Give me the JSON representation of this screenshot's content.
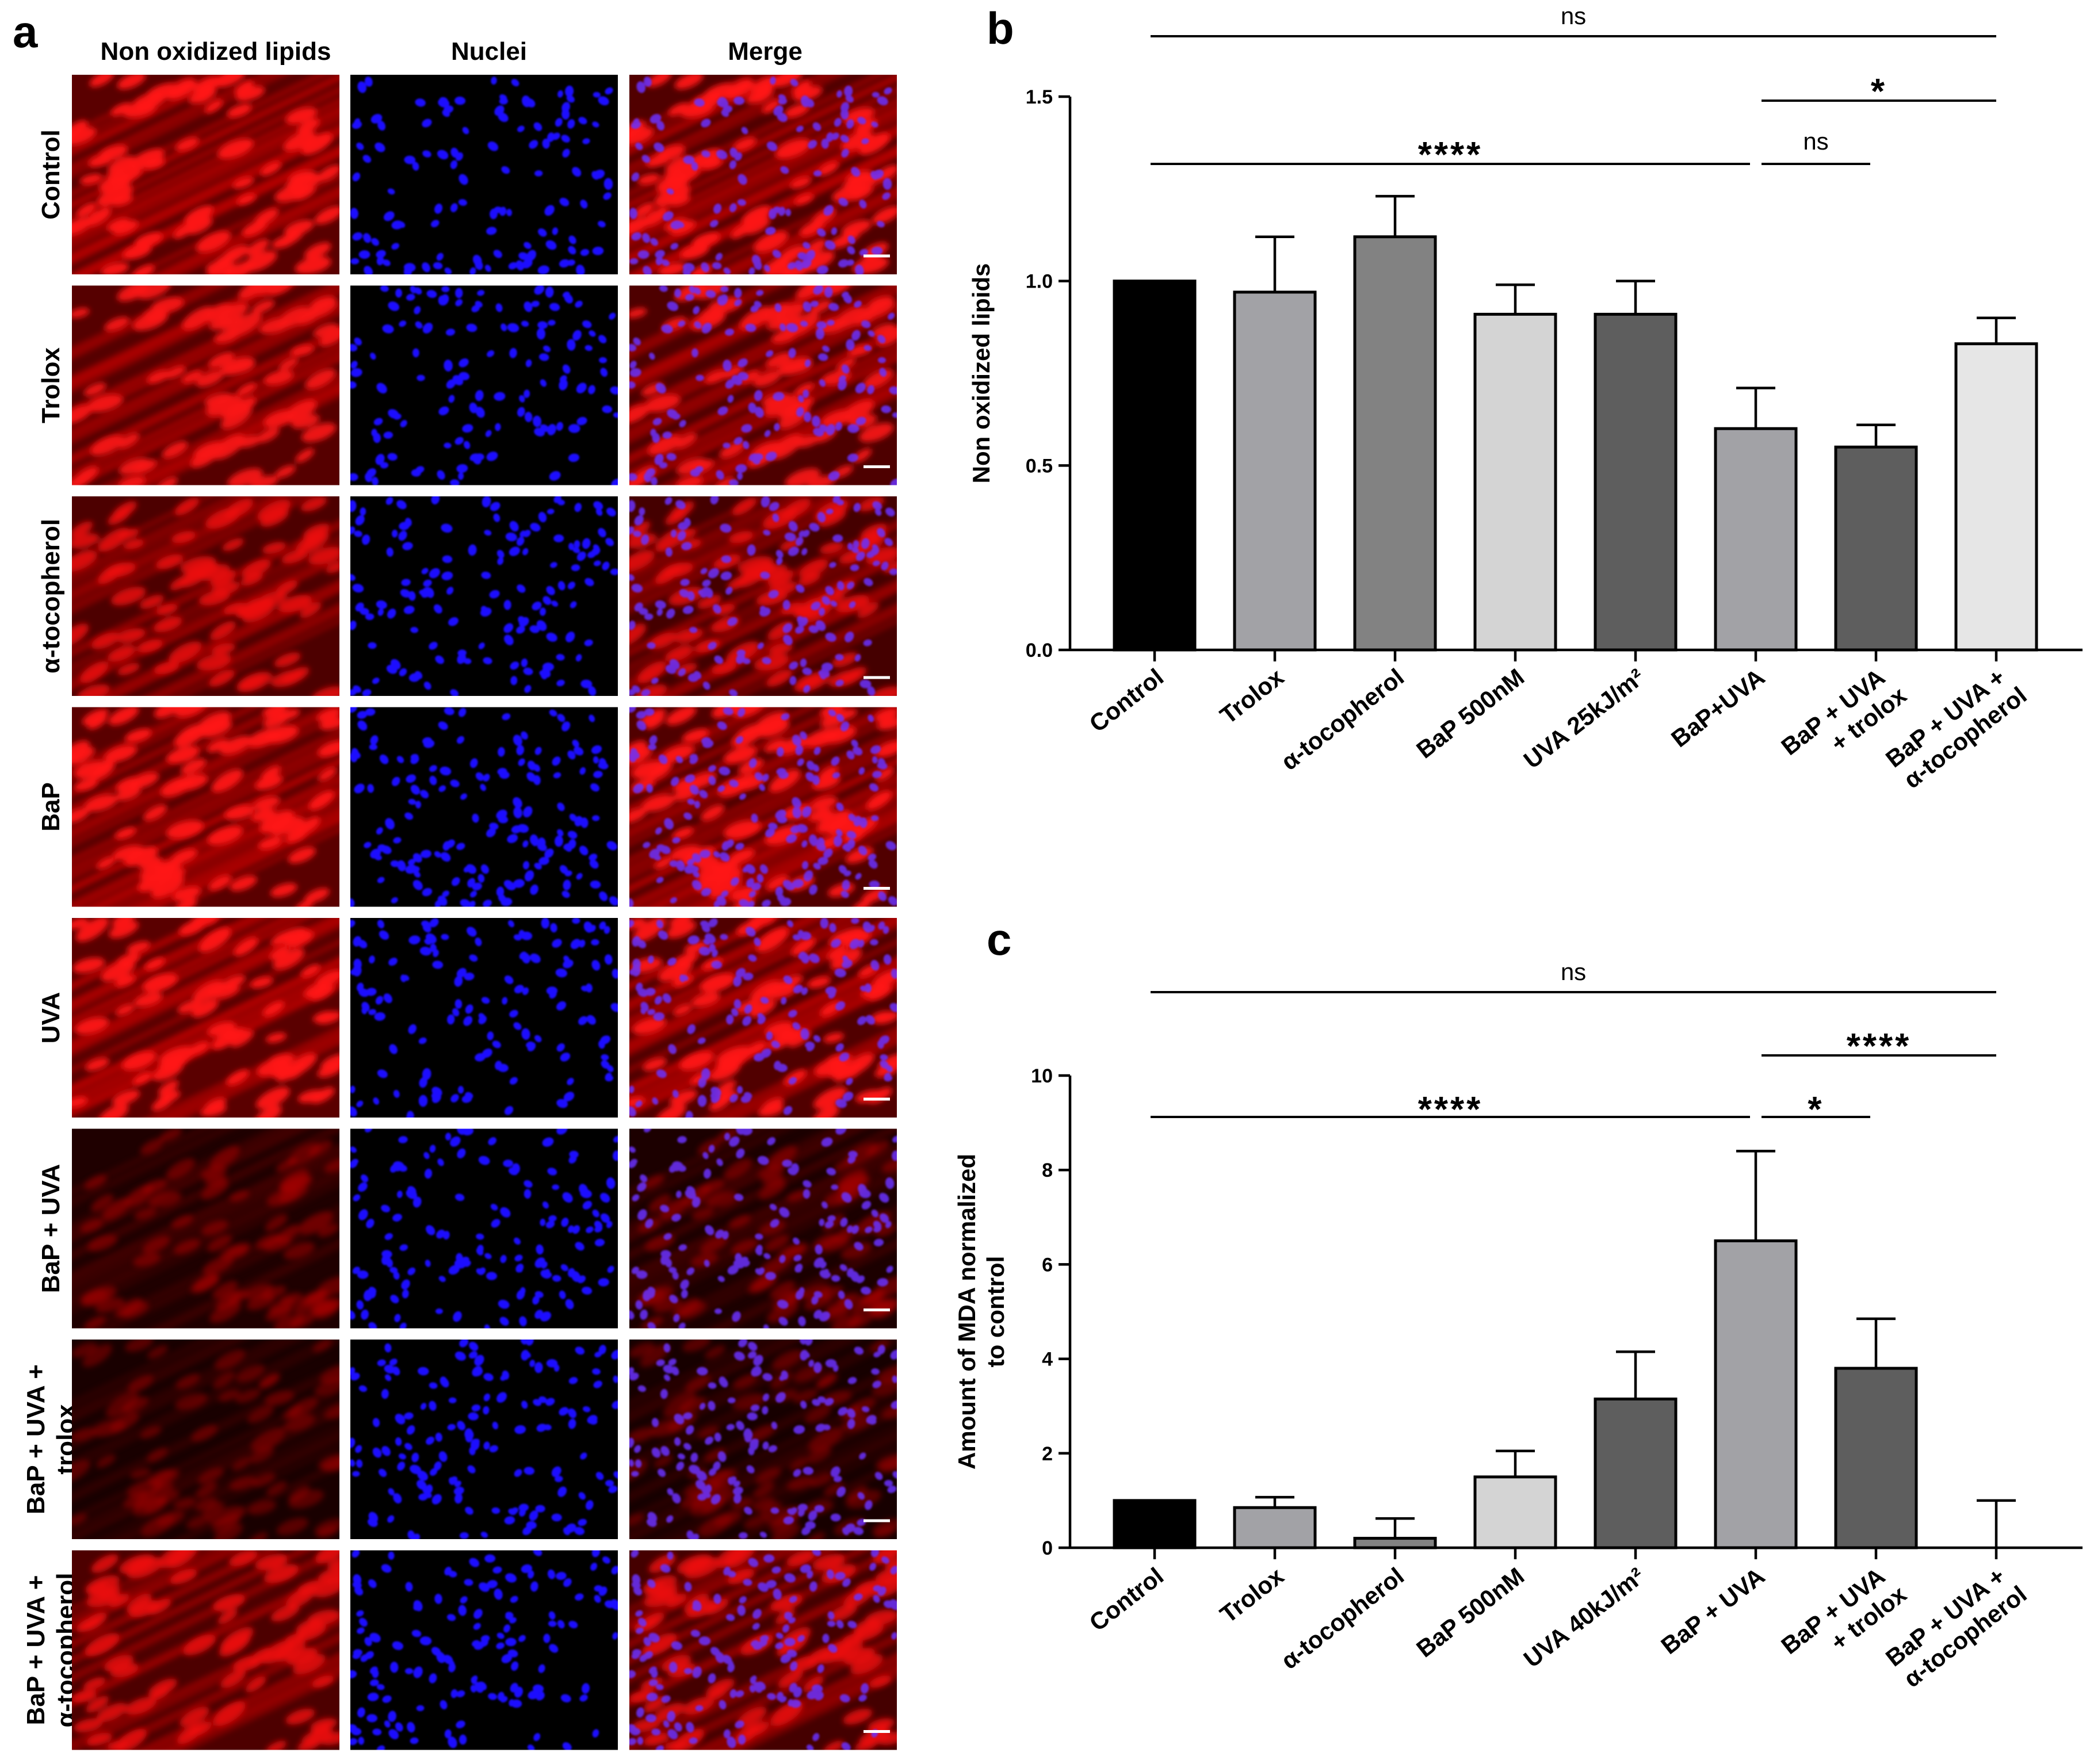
{
  "panel_a": {
    "letter": "a",
    "columns": [
      "Non oxidized lipids",
      "Nuclei",
      "Merge"
    ],
    "rows": [
      [
        "Control"
      ],
      [
        "Trolox"
      ],
      [
        "α-tocopherol"
      ],
      [
        "BaP"
      ],
      [
        "UVA"
      ],
      [
        "BaP + UVA"
      ],
      [
        "BaP + UVA +",
        "trolox"
      ],
      [
        "BaP + UVA +",
        "α-tocopherol"
      ]
    ],
    "intensity": [
      1.0,
      0.95,
      0.85,
      1.0,
      1.0,
      0.35,
      0.28,
      0.85
    ],
    "nuclei_density": [
      0.55,
      0.6,
      0.75,
      1.0,
      0.65,
      0.8,
      0.85,
      0.8
    ],
    "colors": {
      "lipid": "#e00000",
      "nuclei": "#1a10ff",
      "background": "#000000"
    }
  },
  "chart_data": [
    {
      "panel": "b",
      "type": "bar",
      "ylabel": [
        "Non oxidized lipids"
      ],
      "ylim": [
        0,
        1.5
      ],
      "yticks": [
        0.0,
        0.5,
        1.0,
        1.5
      ],
      "ytick_labels": [
        "0.0",
        "0.5",
        "1.0",
        "1.5"
      ],
      "categories": [
        [
          "Control"
        ],
        [
          "Trolox"
        ],
        [
          "α-tocopherol"
        ],
        [
          "BaP 500nM"
        ],
        [
          "UVA 25kJ/m²"
        ],
        [
          "BaP+UVA"
        ],
        [
          "BaP + UVA",
          "+ trolox"
        ],
        [
          "BaP + UVA +",
          "α-tocopherol"
        ]
      ],
      "values": [
        1.0,
        0.97,
        1.12,
        0.91,
        0.91,
        0.6,
        0.55,
        0.83
      ],
      "errors": [
        0.0,
        0.15,
        0.11,
        0.08,
        0.09,
        0.11,
        0.06,
        0.07
      ],
      "bar_colors": [
        "#000000",
        "#a2a2a6",
        "#828282",
        "#d4d4d4",
        "#5e5e5e",
        "#a2a2a6",
        "#5e5e5e",
        "#e6e6e6"
      ],
      "significance": [
        {
          "from": 0,
          "to": 7,
          "label": "ns"
        },
        {
          "from": 5,
          "to": 7,
          "label": "*"
        },
        {
          "from": 0,
          "to": 5,
          "label": "****"
        },
        {
          "from": 5,
          "to": 6,
          "label": "ns"
        }
      ]
    },
    {
      "panel": "c",
      "type": "bar",
      "ylabel": [
        "Amount of MDA normalized",
        "to control"
      ],
      "ylim": [
        0,
        10
      ],
      "yticks": [
        0,
        2,
        4,
        6,
        8,
        10
      ],
      "ytick_labels": [
        "0",
        "2",
        "4",
        "6",
        "8",
        "10"
      ],
      "categories": [
        [
          "Control"
        ],
        [
          "Trolox"
        ],
        [
          "α-tocopherol"
        ],
        [
          "BaP 500nM"
        ],
        [
          "UVA 40kJ/m²"
        ],
        [
          "BaP + UVA"
        ],
        [
          "BaP + UVA",
          "+ trolox"
        ],
        [
          "BaP + UVA +",
          "α-tocopherol"
        ]
      ],
      "values": [
        1.0,
        0.85,
        0.2,
        1.5,
        3.15,
        6.5,
        3.8,
        0.0
      ],
      "errors": [
        0.0,
        0.22,
        0.42,
        0.55,
        1.0,
        1.9,
        1.05,
        1.0
      ],
      "bar_colors": [
        "#000000",
        "#a2a2a6",
        "#828282",
        "#d4d4d4",
        "#5e5e5e",
        "#a2a2a6",
        "#5e5e5e",
        "#e6e6e6"
      ],
      "significance": [
        {
          "from": 0,
          "to": 7,
          "label": "ns"
        },
        {
          "from": 5,
          "to": 7,
          "label": "****"
        },
        {
          "from": 0,
          "to": 5,
          "label": "****"
        },
        {
          "from": 5,
          "to": 6,
          "label": "*"
        }
      ]
    }
  ]
}
